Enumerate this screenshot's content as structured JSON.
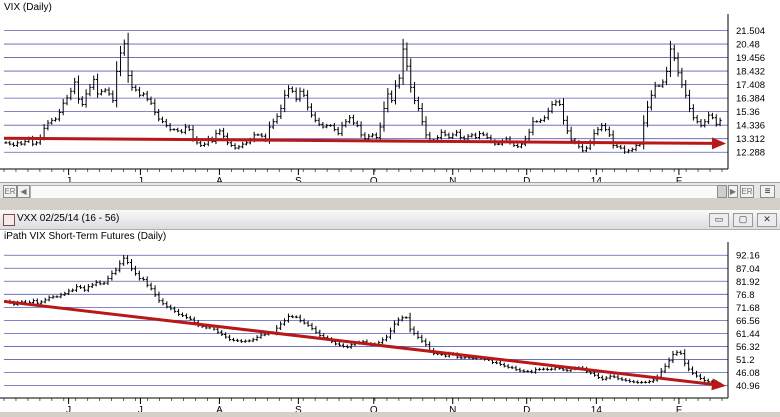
{
  "chart_data": [
    {
      "type": "candlestick",
      "title": "VIX (Daily)",
      "y_ticks": [
        "21.504",
        "20.48",
        "19.456",
        "18.432",
        "17.408",
        "16.384",
        "15.36",
        "14.336",
        "13.312",
        "12.288"
      ],
      "ylim": [
        11.7,
        22.3
      ],
      "x_ticks": [
        "J",
        "J",
        "A",
        "S",
        "O",
        "N",
        "D",
        "14",
        "F"
      ],
      "trendline": {
        "start": 13.35,
        "end": 12.95,
        "color": "#b81818"
      },
      "series": [
        13.0,
        12.9,
        12.8,
        13.0,
        12.9,
        13.1,
        13.3,
        12.9,
        13.0,
        13.4,
        14.1,
        14.5,
        14.7,
        14.8,
        15.3,
        16.0,
        16.4,
        16.9,
        17.6,
        16.3,
        15.9,
        16.7,
        17.2,
        17.8,
        16.7,
        16.9,
        17.0,
        16.7,
        16.2,
        18.4,
        19.8,
        20.5,
        18.1,
        17.2,
        17.0,
        16.6,
        16.7,
        16.3,
        16.0,
        15.3,
        14.8,
        14.6,
        14.3,
        14.0,
        14.0,
        13.9,
        13.8,
        14.2,
        14.0,
        13.3,
        13.0,
        12.8,
        12.9,
        13.3,
        13.1,
        13.7,
        13.9,
        13.5,
        13.0,
        12.8,
        12.6,
        12.7,
        12.9,
        13.0,
        13.2,
        13.6,
        13.6,
        13.5,
        13.2,
        14.2,
        14.6,
        15.0,
        15.6,
        16.6,
        17.1,
        16.9,
        16.3,
        16.9,
        16.6,
        15.7,
        15.1,
        14.7,
        14.4,
        14.2,
        14.3,
        14.3,
        14.0,
        13.7,
        14.3,
        14.6,
        14.9,
        14.5,
        14.3,
        13.6,
        13.3,
        13.5,
        13.6,
        13.4,
        14.2,
        15.6,
        16.7,
        16.2,
        17.3,
        17.9,
        20.1,
        18.8,
        17.2,
        16.2,
        15.6,
        14.6,
        13.6,
        13.2,
        13.2,
        13.4,
        13.8,
        13.6,
        13.4,
        13.6,
        13.8,
        13.4,
        13.3,
        13.5,
        13.6,
        13.4,
        13.7,
        13.6,
        13.4,
        13.1,
        12.9,
        12.9,
        13.1,
        13.3,
        13.0,
        12.8,
        12.7,
        12.9,
        13.3,
        13.8,
        14.6,
        14.6,
        14.7,
        14.9,
        15.4,
        15.9,
        16.1,
        15.9,
        14.7,
        13.9,
        13.2,
        13.0,
        12.7,
        12.4,
        12.6,
        13.0,
        13.7,
        14.0,
        14.3,
        14.0,
        13.6,
        12.8,
        12.7,
        12.6,
        12.3,
        12.4,
        12.5,
        12.8,
        12.9,
        14.5,
        15.7,
        16.6,
        17.3,
        17.3,
        17.6,
        18.4,
        20.1,
        19.4,
        18.3,
        17.4,
        16.6,
        15.6,
        14.9,
        14.6,
        14.3,
        14.6,
        15.1,
        14.9,
        14.4,
        14.7
      ]
    },
    {
      "type": "candlestick",
      "title": "iPath VIX Short-Term Futures (Daily)",
      "y_ticks": [
        "92.16",
        "87.04",
        "81.92",
        "76.8",
        "71.68",
        "66.56",
        "61.44",
        "56.32",
        "51.2",
        "46.08",
        "40.96"
      ],
      "ylim": [
        39.2,
        95.0
      ],
      "x_ticks": [
        "J",
        "J",
        "A",
        "S",
        "O",
        "N",
        "D",
        "14",
        "F"
      ],
      "trendline": {
        "start": 74.0,
        "end": 40.8,
        "color": "#b81818"
      },
      "series": [
        74.0,
        73.5,
        72.8,
        73.5,
        73.8,
        73.0,
        73.6,
        74.3,
        73.3,
        73.8,
        74.6,
        75.5,
        75.8,
        75.8,
        76.6,
        77.1,
        78.1,
        78.4,
        79.8,
        79.4,
        78.4,
        79.8,
        80.5,
        81.5,
        80.9,
        81.2,
        83.0,
        85.0,
        86.3,
        88.8,
        91.0,
        89.3,
        86.8,
        84.9,
        83.0,
        82.6,
        80.4,
        79.0,
        76.6,
        74.3,
        73.1,
        71.9,
        71.1,
        70.1,
        68.9,
        68.4,
        67.6,
        67.0,
        65.7,
        64.5,
        64.1,
        63.6,
        64.0,
        63.1,
        61.9,
        61.0,
        60.0,
        59.0,
        58.7,
        58.5,
        58.2,
        58.4,
        58.5,
        59.0,
        59.9,
        60.8,
        61.1,
        61.6,
        61.5,
        63.5,
        65.1,
        66.4,
        68.1,
        67.9,
        67.8,
        66.4,
        65.5,
        64.6,
        63.3,
        61.9,
        60.6,
        59.8,
        59.1,
        58.2,
        57.3,
        56.8,
        56.3,
        56.0,
        57.0,
        57.5,
        57.9,
        58.2,
        57.3,
        56.9,
        57.2,
        57.8,
        58.9,
        60.0,
        62.4,
        65.1,
        66.7,
        67.6,
        67.6,
        63.1,
        61.4,
        59.9,
        58.4,
        57.0,
        54.7,
        53.5,
        53.3,
        53.1,
        52.5,
        53.4,
        53.1,
        52.1,
        51.8,
        52.1,
        51.8,
        51.6,
        51.8,
        51.6,
        51.2,
        51.0,
        50.0,
        49.8,
        49.2,
        48.6,
        48.1,
        47.9,
        47.2,
        46.7,
        46.5,
        46.5,
        46.2,
        47.2,
        47.3,
        47.4,
        47.2,
        47.4,
        48.0,
        47.6,
        47.1,
        46.8,
        47.4,
        47.8,
        47.9,
        47.4,
        46.4,
        45.8,
        45.0,
        44.1,
        43.4,
        43.9,
        44.6,
        44.3,
        43.6,
        43.2,
        42.9,
        42.5,
        42.3,
        42.1,
        42.2,
        42.2,
        42.5,
        43.1,
        44.3,
        46.6,
        48.5,
        50.7,
        53.2,
        54.0,
        53.5,
        49.7,
        47.4,
        45.8,
        44.7,
        43.7,
        42.9,
        42.4,
        42.3,
        41.5,
        41.6
      ]
    }
  ],
  "bottom_window": {
    "title": "VXX 02/25/14 (16 - 56)",
    "minimize": "▭",
    "restore": "▢",
    "close": "✕"
  },
  "scrollbar": {
    "left_label": "ER",
    "right_label": "ER",
    "prev": "◀",
    "next": "▶",
    "menu": "≡"
  },
  "icons": {
    "window": "chart-window-icon",
    "menu": "list-icon"
  }
}
